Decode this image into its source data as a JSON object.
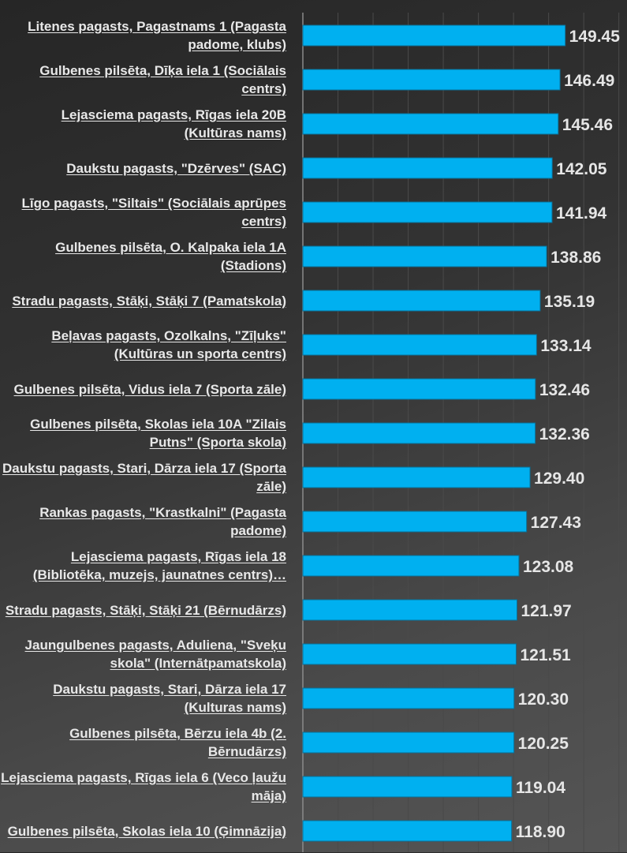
{
  "chart_data": {
    "type": "bar",
    "orientation": "horizontal",
    "title": "",
    "xlabel": "",
    "ylabel": "",
    "xlim": [
      0,
      185
    ],
    "grid": true,
    "grid_step": 20,
    "bar_color": "#00b0f0",
    "categories": [
      "Litenes pagasts, Pagastnams 1 (Pagasta padome, klubs)",
      "Gulbenes pilsēta, Dīķa iela 1 (Sociālais centrs)",
      "Lejasciema pagasts, Rīgas iela 20B (Kultūras nams)",
      "Daukstu pagasts, \"Dzērves\" (SAC)",
      "Līgo pagasts, \"Siltais\" (Sociālais aprūpes centrs)",
      "Gulbenes pilsēta, O. Kalpaka iela 1A (Stadions)",
      "Stradu pagasts, Stāķi, Stāķi 7 (Pamatskola)",
      "Beļavas pagasts, Ozolkalns, \"Zīļuks\" (Kultūras un sporta centrs)",
      "Gulbenes pilsēta, Vidus iela 7 (Sporta zāle)",
      "Gulbenes pilsēta, Skolas iela 10A \"Zilais Putns\" (Sporta skola)",
      "Daukstu pagasts, Stari, Dārza iela 17 (Sporta zāle)",
      "Rankas pagasts, \"Krastkalni\" (Pagasta padome)",
      "Lejasciema pagasts, Rīgas iela 18 (Bibliotēka, muzejs, jaunatnes centrs)…",
      "Stradu pagasts, Stāķi, Stāķi 21 (Bērnudārzs)",
      "Jaungulbenes pagasts, Aduliena, \"Sveķu skola\" (Internātpamatskola)",
      "Daukstu pagasts, Stari, Dārza iela 17 (Kulturas nams)",
      "Gulbenes pilsēta, Bērzu iela 4b (2. Bērnudārzs)",
      "Lejasciema pagasts, Rīgas iela 6 (Veco ļaužu māja)",
      "Gulbenes pilsēta, Skolas iela 10 (Ģimnāzija)"
    ],
    "values": [
      149.45,
      146.49,
      145.46,
      142.05,
      141.94,
      138.86,
      135.19,
      133.14,
      132.46,
      132.36,
      129.4,
      127.43,
      123.08,
      121.97,
      121.51,
      120.3,
      120.25,
      119.04,
      118.9
    ],
    "data_labels": [
      "149.45",
      "146.49",
      "145.46",
      "142.05",
      "141.94",
      "138.86",
      "135.19",
      "133.14",
      "132.46",
      "132.36",
      "129.40",
      "127.43",
      "123.08",
      "121.97",
      "121.51",
      "120.30",
      "120.25",
      "119.04",
      "118.90"
    ]
  }
}
